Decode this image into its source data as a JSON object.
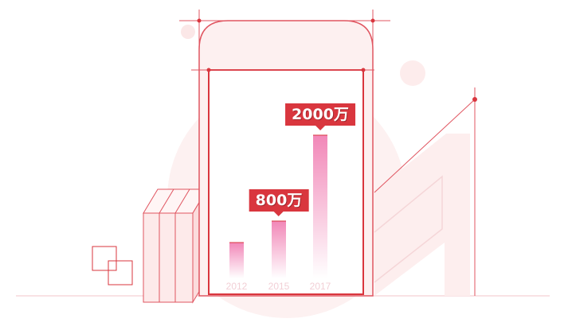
{
  "colors": {
    "accent": "#d9363e",
    "line": "#e05560",
    "soft_fill": "#fdeeee",
    "bar_top": "#f07ab0",
    "year_text": "#f2cfd6"
  },
  "chart_data": {
    "type": "bar",
    "categories": [
      "2012",
      "2015",
      "2017"
    ],
    "values": [
      500,
      800,
      2000
    ],
    "callouts": [
      {
        "category": "2015",
        "label": "800万"
      },
      {
        "category": "2017",
        "label": "2000万"
      }
    ],
    "ylim": [
      0,
      2000
    ]
  }
}
